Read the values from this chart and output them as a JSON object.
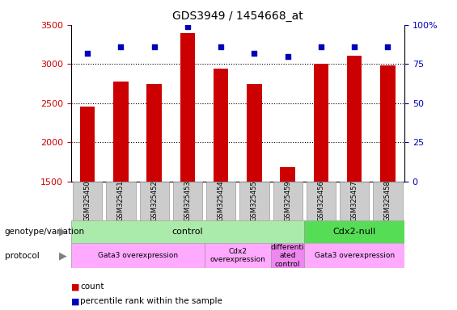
{
  "title": "GDS3949 / 1454668_at",
  "samples": [
    "GSM325450",
    "GSM325451",
    "GSM325452",
    "GSM325453",
    "GSM325454",
    "GSM325455",
    "GSM325459",
    "GSM325456",
    "GSM325457",
    "GSM325458"
  ],
  "counts": [
    2460,
    2780,
    2740,
    3390,
    2940,
    2740,
    1680,
    3000,
    3110,
    2980
  ],
  "percentile_ranks": [
    82,
    86,
    86,
    99,
    86,
    82,
    80,
    86,
    86,
    86
  ],
  "ylim_left": [
    1500,
    3500
  ],
  "ylim_right": [
    0,
    100
  ],
  "right_ticks": [
    0,
    25,
    50,
    75,
    100
  ],
  "right_tick_labels": [
    "0",
    "25",
    "50",
    "75",
    "100%"
  ],
  "left_ticks": [
    1500,
    2000,
    2500,
    3000,
    3500
  ],
  "bar_color": "#cc0000",
  "dot_color": "#0000bb",
  "bar_width": 0.45,
  "genotype_groups": [
    {
      "label": "control",
      "start": 0,
      "end": 6,
      "color": "#aaeaaa"
    },
    {
      "label": "Cdx2-null",
      "start": 7,
      "end": 9,
      "color": "#55dd55"
    }
  ],
  "protocol_groups": [
    {
      "label": "Gata3 overexpression",
      "start": 0,
      "end": 3,
      "color": "#ffaaff"
    },
    {
      "label": "Cdx2\noverexpression",
      "start": 4,
      "end": 5,
      "color": "#ffaaff"
    },
    {
      "label": "differenti\nated\ncontrol",
      "start": 6,
      "end": 6,
      "color": "#ee88ee"
    },
    {
      "label": "Gata3 overexpression",
      "start": 7,
      "end": 9,
      "color": "#ffaaff"
    }
  ],
  "left_label_color": "#cc0000",
  "right_label_color": "#0000bb",
  "bg_color": "#ffffff",
  "sample_box_color": "#cccccc",
  "sample_box_edge": "#999999"
}
